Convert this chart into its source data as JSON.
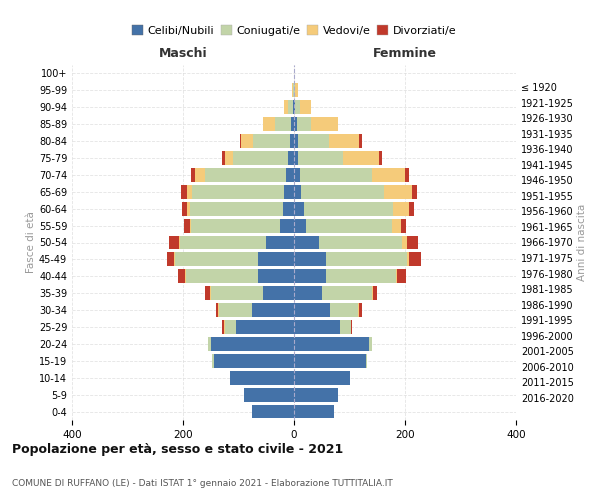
{
  "age_groups_bottom_to_top": [
    "0-4",
    "5-9",
    "10-14",
    "15-19",
    "20-24",
    "25-29",
    "30-34",
    "35-39",
    "40-44",
    "45-49",
    "50-54",
    "55-59",
    "60-64",
    "65-69",
    "70-74",
    "75-79",
    "80-84",
    "85-89",
    "90-94",
    "95-99",
    "100+"
  ],
  "birth_years_bottom_to_top": [
    "2016-2020",
    "2011-2015",
    "2006-2010",
    "2001-2005",
    "1996-2000",
    "1991-1995",
    "1986-1990",
    "1981-1985",
    "1976-1980",
    "1971-1975",
    "1966-1970",
    "1961-1965",
    "1956-1960",
    "1951-1955",
    "1946-1950",
    "1941-1945",
    "1936-1940",
    "1931-1935",
    "1926-1930",
    "1921-1925",
    "≤ 1920"
  ],
  "male": {
    "celibi": [
      75,
      90,
      115,
      145,
      150,
      105,
      75,
      55,
      65,
      65,
      50,
      25,
      20,
      18,
      15,
      10,
      8,
      5,
      2,
      0,
      0
    ],
    "coniugati": [
      0,
      0,
      0,
      2,
      5,
      20,
      60,
      95,
      130,
      150,
      155,
      160,
      168,
      165,
      145,
      100,
      65,
      30,
      8,
      2,
      0
    ],
    "vedovi": [
      0,
      0,
      0,
      0,
      0,
      2,
      2,
      2,
      2,
      2,
      2,
      3,
      5,
      10,
      18,
      15,
      22,
      20,
      8,
      2,
      0
    ],
    "divorziati": [
      0,
      0,
      0,
      0,
      0,
      2,
      3,
      8,
      12,
      12,
      18,
      10,
      8,
      10,
      8,
      5,
      2,
      0,
      0,
      0,
      0
    ]
  },
  "female": {
    "nubili": [
      72,
      80,
      100,
      130,
      135,
      82,
      65,
      50,
      58,
      58,
      45,
      22,
      18,
      12,
      10,
      8,
      8,
      5,
      2,
      0,
      0
    ],
    "coniugate": [
      0,
      0,
      0,
      2,
      5,
      20,
      50,
      90,
      125,
      145,
      150,
      155,
      160,
      150,
      130,
      80,
      55,
      25,
      8,
      2,
      0
    ],
    "vedove": [
      0,
      0,
      0,
      0,
      0,
      1,
      2,
      2,
      3,
      5,
      8,
      15,
      30,
      50,
      60,
      65,
      55,
      50,
      20,
      5,
      0
    ],
    "divorziate": [
      0,
      0,
      0,
      0,
      0,
      2,
      5,
      8,
      15,
      20,
      20,
      10,
      8,
      10,
      8,
      5,
      5,
      0,
      0,
      0,
      0
    ]
  },
  "colors": {
    "celibi_nubili": "#4472a8",
    "coniugati": "#c2d4a8",
    "vedovi": "#f5cb7a",
    "divorziati": "#c0392b"
  },
  "title": "Popolazione per età, sesso e stato civile - 2021",
  "subtitle": "COMUNE DI RUFFANO (LE) - Dati ISTAT 1° gennaio 2021 - Elaborazione TUTTITALIA.IT",
  "ylabel_left": "Fasce di età",
  "ylabel_right": "Anni di nascita",
  "xlabel_left": "Maschi",
  "xlabel_right": "Femmine",
  "xlim": 400,
  "legend_labels": [
    "Celibi/Nubili",
    "Coniugati/e",
    "Vedovi/e",
    "Divorziati/e"
  ]
}
